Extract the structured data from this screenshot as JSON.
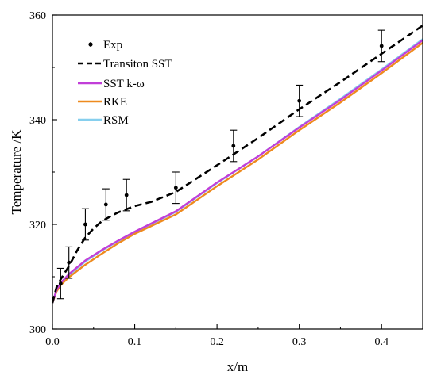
{
  "chart_data": {
    "type": "line",
    "title": "",
    "xlabel": "x/m",
    "ylabel": "Temperature /K",
    "xlim": [
      0.0,
      0.45
    ],
    "ylim": [
      300,
      360
    ],
    "xticks": [
      "0.0",
      "0.1",
      "0.2",
      "0.3",
      "0.4"
    ],
    "yticks": [
      "300",
      "320",
      "340",
      "360"
    ],
    "xtick_values": [
      0.0,
      0.1,
      0.2,
      0.3,
      0.4
    ],
    "ytick_values": [
      300,
      320,
      340,
      360
    ],
    "grid": false,
    "legend_position": "top-left",
    "experimental": {
      "name": "Exp",
      "x": [
        0.01,
        0.02,
        0.04,
        0.065,
        0.09,
        0.15,
        0.22,
        0.3,
        0.4
      ],
      "y": [
        308.7,
        312.7,
        320.0,
        323.8,
        325.6,
        327.0,
        335.0,
        343.6,
        354.1
      ],
      "err": [
        2.9,
        3.0,
        3.0,
        3.0,
        3.0,
        3.0,
        3.0,
        3.0,
        3.0
      ]
    },
    "series": [
      {
        "name": "Transiton SST",
        "color": "#000000",
        "dash": true,
        "x": [
          0.0,
          0.005,
          0.01,
          0.02,
          0.03,
          0.04,
          0.05,
          0.06,
          0.07,
          0.08,
          0.09,
          0.1,
          0.12,
          0.15,
          0.2,
          0.25,
          0.3,
          0.35,
          0.4,
          0.45
        ],
        "y": [
          305.0,
          308.0,
          309.5,
          312.0,
          315.0,
          317.5,
          319.2,
          320.6,
          321.5,
          322.3,
          322.9,
          323.5,
          324.3,
          326.2,
          331.3,
          336.5,
          342.0,
          347.2,
          352.6,
          358.0
        ]
      },
      {
        "name": "SST k-ω",
        "color": "#c13ed8",
        "dash": false,
        "x": [
          0.0,
          0.005,
          0.01,
          0.02,
          0.04,
          0.06,
          0.08,
          0.1,
          0.15,
          0.2,
          0.25,
          0.3,
          0.35,
          0.4,
          0.45
        ],
        "y": [
          305.0,
          307.5,
          308.8,
          310.5,
          313.1,
          315.1,
          316.9,
          318.6,
          322.5,
          328.0,
          333.0,
          338.5,
          343.8,
          349.4,
          355.2
        ]
      },
      {
        "name": "RKE",
        "color": "#ee8a1e",
        "dash": false,
        "x": [
          0.0,
          0.005,
          0.01,
          0.02,
          0.04,
          0.06,
          0.08,
          0.1,
          0.15,
          0.2,
          0.25,
          0.3,
          0.35,
          0.4,
          0.45
        ],
        "y": [
          305.0,
          307.2,
          308.4,
          309.9,
          312.3,
          314.4,
          316.4,
          318.2,
          321.9,
          327.3,
          332.4,
          338.0,
          343.3,
          348.9,
          354.7
        ]
      },
      {
        "name": "RSM",
        "color": "#86cfee",
        "dash": false,
        "x": [
          0.0,
          0.005,
          0.01,
          0.02,
          0.04,
          0.06,
          0.08,
          0.1,
          0.15,
          0.2,
          0.25,
          0.3,
          0.35,
          0.4,
          0.45
        ],
        "y": [
          305.0,
          307.4,
          308.6,
          310.3,
          312.9,
          315.0,
          316.8,
          318.5,
          322.4,
          327.9,
          333.0,
          338.6,
          344.0,
          349.6,
          355.4
        ]
      }
    ]
  }
}
